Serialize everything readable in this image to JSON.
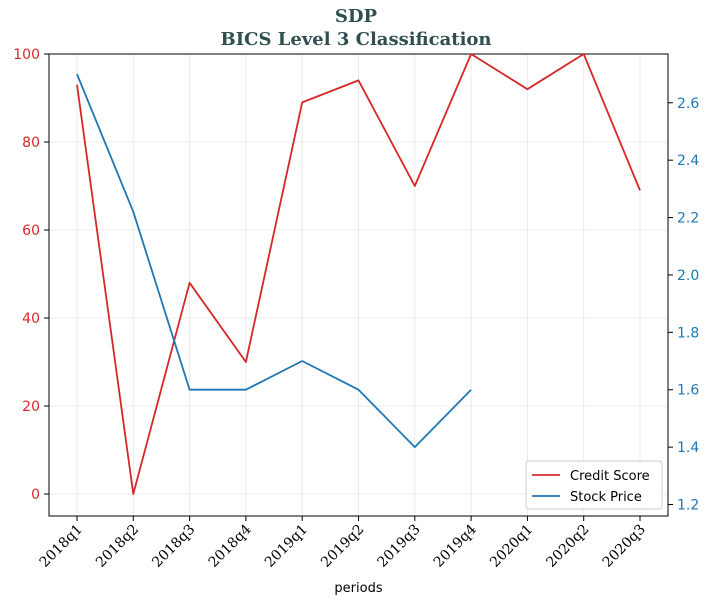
{
  "title": "SDP",
  "subtitle": "BICS Level 3 Classification",
  "colors": {
    "title": "#2f4f4f",
    "credit": "#d62728",
    "price": "#1f77b4",
    "grid": "#e6e6e6"
  },
  "chart_data": {
    "type": "line",
    "title": "SDP",
    "subtitle": "BICS Level 3 Classification",
    "xlabel": "periods",
    "categories": [
      "2018q1",
      "2018q2",
      "2018q3",
      "2018q4",
      "2019q1",
      "2019q2",
      "2019q3",
      "2019q4",
      "2020q1",
      "2020q2",
      "2020q3"
    ],
    "series": [
      {
        "name": "Credit Score",
        "axis": "left",
        "color": "#d62728",
        "values": [
          93,
          0,
          48,
          30,
          89,
          94,
          70,
          100,
          92,
          100,
          69
        ]
      },
      {
        "name": "Stock Price",
        "axis": "right",
        "color": "#1f77b4",
        "values": [
          2.7,
          2.22,
          1.6,
          1.6,
          1.7,
          1.6,
          1.4,
          1.6,
          null,
          null,
          null
        ]
      }
    ],
    "ylim_left": [
      -5,
      100
    ],
    "yticks_left": [
      "0",
      "20",
      "40",
      "60",
      "80",
      "100"
    ],
    "ylim_right": [
      1.16,
      2.77
    ],
    "yticks_right": [
      "1.2",
      "1.4",
      "1.6",
      "1.8",
      "2.0",
      "2.2",
      "2.4",
      "2.6"
    ],
    "grid": true,
    "legend_position": "lower-right"
  }
}
